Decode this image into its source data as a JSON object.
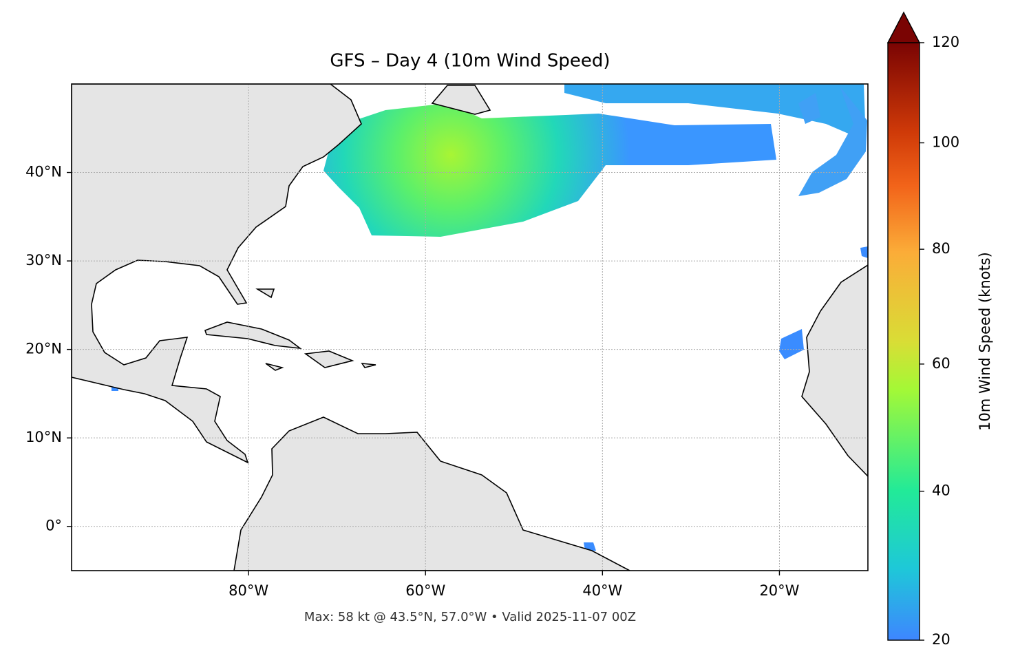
{
  "chart_data": {
    "type": "map",
    "title": "GFS – Day 4 (10m Wind Speed)",
    "xlim": [
      -100,
      -10
    ],
    "ylim": [
      -5,
      50
    ],
    "xticks": [
      {
        "value": -80,
        "label": "80°W"
      },
      {
        "value": -60,
        "label": "60°W"
      },
      {
        "value": -40,
        "label": "40°W"
      },
      {
        "value": -20,
        "label": "20°W"
      }
    ],
    "yticks": [
      {
        "value": 40,
        "label": "40°N"
      },
      {
        "value": 30,
        "label": "30°N"
      },
      {
        "value": 20,
        "label": "20°N"
      },
      {
        "value": 10,
        "label": "10°N"
      },
      {
        "value": 0,
        "label": "0°"
      }
    ],
    "grid": true,
    "colorbar": {
      "label": "10m Wind Speed (knots)",
      "lim": [
        20,
        120
      ],
      "ticks": [
        20,
        40,
        60,
        80,
        100,
        120
      ],
      "extend": "max"
    },
    "footnote": "Max: 58 kt @ 43.5°N, 57.0°W • Valid 2025-11-07 00Z"
  }
}
